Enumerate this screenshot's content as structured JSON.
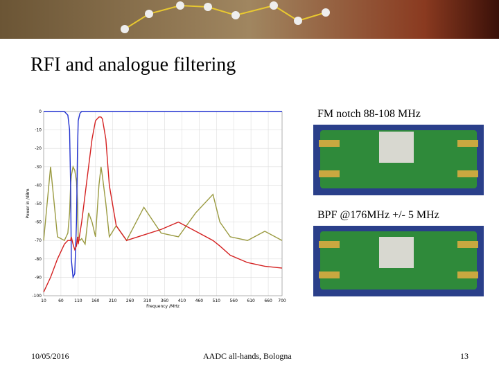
{
  "slide": {
    "title": "RFI and analogue filtering",
    "captions": [
      "FM notch 88-108 MHz",
      "BPF @176MHz +/- 5 MHz"
    ],
    "footer": {
      "date": "10/05/2016",
      "event": "AADC all-hands, Bologna",
      "page": "13"
    }
  },
  "chart_data": {
    "type": "line",
    "x_label": "Frequency /MHz",
    "y_label": "Power in /dBm",
    "x": [
      10,
      30,
      50,
      70,
      80,
      85,
      88,
      90,
      95,
      100,
      105,
      108,
      110,
      115,
      120,
      130,
      140,
      150,
      160,
      170,
      176,
      180,
      190,
      200,
      220,
      250,
      300,
      350,
      400,
      450,
      500,
      520,
      550,
      600,
      650,
      700
    ],
    "series": [
      {
        "color": "#9a9a40",
        "values": [
          -70,
          -30,
          -68,
          -70,
          -66,
          -55,
          -40,
          -35,
          -30,
          -32,
          -38,
          -50,
          -68,
          -70,
          -69,
          -72,
          -55,
          -60,
          -68,
          -40,
          -30,
          -35,
          -50,
          -68,
          -62,
          -70,
          -52,
          -66,
          -68,
          -55,
          -45,
          -60,
          -68,
          -70,
          -65,
          -70
        ]
      },
      {
        "color": "#1f2fcf",
        "values": [
          0,
          0,
          0,
          0,
          -2,
          -10,
          -40,
          -80,
          -90,
          -88,
          -60,
          -20,
          -5,
          -1,
          0,
          0,
          0,
          0,
          0,
          0,
          0,
          0,
          0,
          0,
          0,
          0,
          0,
          0,
          0,
          0,
          0,
          0,
          0,
          0,
          0,
          0
        ]
      },
      {
        "color": "#d42020",
        "values": [
          -98,
          -90,
          -80,
          -72,
          -70,
          -70,
          -70,
          -68,
          -72,
          -75,
          -73,
          -68,
          -72,
          -66,
          -60,
          -45,
          -30,
          -15,
          -5,
          -3,
          -3,
          -4,
          -15,
          -40,
          -62,
          -70,
          -67,
          -64,
          -60,
          -65,
          -70,
          -73,
          -78,
          -82,
          -84,
          -85
        ]
      }
    ],
    "xlim": [
      10,
      700
    ],
    "ylim": [
      -100,
      0
    ],
    "xticks": [
      10,
      60,
      110,
      160,
      210,
      260,
      310,
      360,
      410,
      460,
      510,
      560,
      610,
      660,
      700
    ],
    "yticks": [
      0,
      -10,
      -20,
      -30,
      -40,
      -50,
      -60,
      -70,
      -80,
      -90,
      -100
    ],
    "grid": true
  }
}
